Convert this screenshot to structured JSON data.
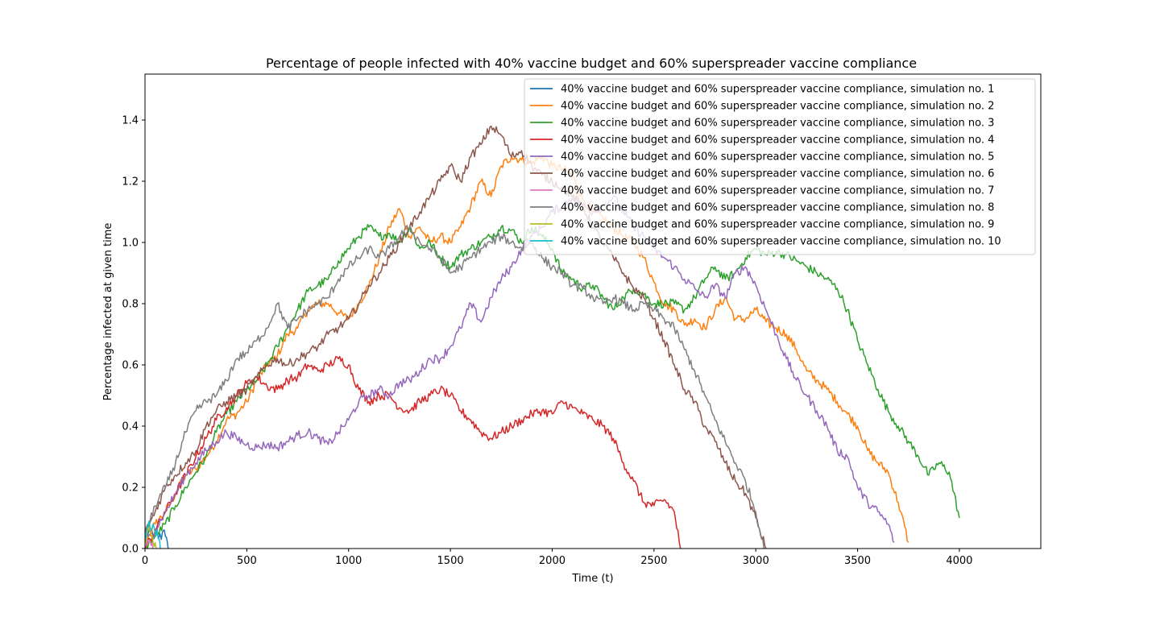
{
  "chart_data": {
    "type": "line",
    "title": "Percentage of people infected with 40% vaccine budget and 60% superspreader vaccine compliance",
    "xlabel": "Time (t)",
    "ylabel": "Percentage infected at given time",
    "xlim": [
      0,
      4400
    ],
    "ylim": [
      0,
      1.55
    ],
    "xticks": [
      0,
      500,
      1000,
      1500,
      2000,
      2500,
      3000,
      3500,
      4000
    ],
    "yticks": [
      0.0,
      0.2,
      0.4,
      0.6,
      0.8,
      1.0,
      1.2,
      1.4
    ],
    "xtick_labels": [
      "0",
      "500",
      "1000",
      "1500",
      "2000",
      "2500",
      "3000",
      "3500",
      "4000"
    ],
    "ytick_labels": [
      "0.0",
      "0.2",
      "0.4",
      "0.6",
      "0.8",
      "1.0",
      "1.2",
      "1.4"
    ],
    "grid": false,
    "legend_position": "upper right",
    "series": [
      {
        "name": "40% vaccine budget and 60% superspreader vaccine compliance, simulation no. 1",
        "color": "#1f77b4",
        "x": [
          0,
          20,
          40,
          60,
          80,
          90,
          100,
          110,
          115
        ],
        "y": [
          0.03,
          0.06,
          0.04,
          0.05,
          0.03,
          0.06,
          0.04,
          0.02,
          0.0
        ]
      },
      {
        "name": "40% vaccine budget and 60% superspreader vaccine compliance, simulation no. 2",
        "color": "#ff7f0e",
        "x": [
          0,
          50,
          100,
          150,
          200,
          250,
          300,
          350,
          400,
          450,
          500,
          550,
          600,
          650,
          700,
          750,
          800,
          850,
          900,
          950,
          1000,
          1050,
          1100,
          1150,
          1200,
          1250,
          1300,
          1350,
          1400,
          1450,
          1500,
          1550,
          1600,
          1650,
          1700,
          1750,
          1800,
          1850,
          1900,
          1950,
          2000,
          2050,
          2100,
          2150,
          2200,
          2250,
          2300,
          2350,
          2400,
          2450,
          2500,
          2550,
          2600,
          2650,
          2700,
          2750,
          2800,
          2850,
          2900,
          2950,
          3000,
          3050,
          3100,
          3150,
          3200,
          3250,
          3300,
          3350,
          3400,
          3450,
          3500,
          3550,
          3600,
          3650,
          3700,
          3750
        ],
        "y": [
          0.02,
          0.08,
          0.12,
          0.18,
          0.24,
          0.26,
          0.3,
          0.35,
          0.42,
          0.44,
          0.48,
          0.55,
          0.6,
          0.63,
          0.7,
          0.72,
          0.78,
          0.8,
          0.8,
          0.77,
          0.75,
          0.8,
          0.86,
          0.95,
          1.05,
          1.11,
          1.02,
          1.05,
          1.0,
          1.02,
          1.0,
          1.05,
          1.12,
          1.2,
          1.15,
          1.25,
          1.28,
          1.27,
          1.26,
          1.28,
          1.25,
          1.24,
          1.22,
          1.14,
          1.1,
          1.08,
          1.05,
          1.02,
          1.0,
          0.95,
          0.87,
          0.8,
          0.78,
          0.73,
          0.75,
          0.72,
          0.78,
          0.82,
          0.75,
          0.75,
          0.78,
          0.74,
          0.72,
          0.7,
          0.65,
          0.58,
          0.55,
          0.52,
          0.48,
          0.44,
          0.4,
          0.32,
          0.28,
          0.25,
          0.15,
          0.02
        ]
      },
      {
        "name": "40% vaccine budget and 60% superspreader vaccine compliance, simulation no. 3",
        "color": "#2ca02c",
        "x": [
          0,
          50,
          100,
          150,
          200,
          250,
          300,
          350,
          400,
          450,
          500,
          550,
          600,
          650,
          700,
          750,
          800,
          850,
          900,
          950,
          1000,
          1050,
          1100,
          1150,
          1200,
          1250,
          1300,
          1350,
          1400,
          1450,
          1500,
          1550,
          1600,
          1650,
          1700,
          1750,
          1800,
          1850,
          1900,
          1950,
          2000,
          2050,
          2100,
          2150,
          2200,
          2250,
          2300,
          2350,
          2400,
          2450,
          2500,
          2550,
          2600,
          2650,
          2700,
          2750,
          2800,
          2850,
          2900,
          2950,
          3000,
          3050,
          3100,
          3150,
          3200,
          3250,
          3300,
          3350,
          3400,
          3450,
          3500,
          3550,
          3600,
          3650,
          3700,
          3750,
          3800,
          3850,
          3900,
          3950,
          4000
        ],
        "y": [
          0.0,
          0.04,
          0.08,
          0.14,
          0.2,
          0.25,
          0.3,
          0.38,
          0.44,
          0.48,
          0.52,
          0.55,
          0.6,
          0.66,
          0.72,
          0.78,
          0.84,
          0.86,
          0.88,
          0.94,
          0.98,
          1.02,
          1.05,
          1.02,
          1.03,
          1.0,
          1.05,
          0.98,
          1.0,
          0.95,
          0.92,
          0.96,
          0.98,
          1.0,
          1.02,
          1.05,
          1.04,
          1.0,
          1.05,
          1.02,
          0.98,
          0.9,
          0.88,
          0.85,
          0.86,
          0.82,
          0.78,
          0.82,
          0.85,
          0.83,
          0.8,
          0.8,
          0.8,
          0.78,
          0.82,
          0.88,
          0.92,
          0.88,
          0.9,
          0.95,
          0.98,
          0.96,
          0.97,
          0.96,
          0.94,
          0.92,
          0.9,
          0.88,
          0.85,
          0.78,
          0.68,
          0.6,
          0.52,
          0.45,
          0.4,
          0.35,
          0.3,
          0.24,
          0.28,
          0.25,
          0.1
        ]
      },
      {
        "name": "40% vaccine budget and 60% superspreader vaccine compliance, simulation no. 4",
        "color": "#d62728",
        "x": [
          0,
          50,
          100,
          150,
          200,
          250,
          300,
          350,
          400,
          450,
          500,
          550,
          600,
          650,
          700,
          750,
          800,
          850,
          900,
          950,
          1000,
          1050,
          1100,
          1150,
          1200,
          1250,
          1300,
          1350,
          1400,
          1450,
          1500,
          1550,
          1600,
          1650,
          1700,
          1750,
          1800,
          1850,
          1900,
          1950,
          2000,
          2050,
          2100,
          2150,
          2200,
          2250,
          2300,
          2350,
          2400,
          2450,
          2500,
          2550,
          2600,
          2630
        ],
        "y": [
          0.0,
          0.06,
          0.12,
          0.18,
          0.24,
          0.3,
          0.36,
          0.42,
          0.46,
          0.5,
          0.54,
          0.56,
          0.53,
          0.52,
          0.55,
          0.56,
          0.6,
          0.58,
          0.6,
          0.62,
          0.6,
          0.52,
          0.48,
          0.5,
          0.5,
          0.46,
          0.45,
          0.48,
          0.5,
          0.52,
          0.5,
          0.45,
          0.42,
          0.38,
          0.36,
          0.38,
          0.4,
          0.42,
          0.44,
          0.45,
          0.44,
          0.48,
          0.46,
          0.44,
          0.42,
          0.4,
          0.36,
          0.28,
          0.22,
          0.15,
          0.14,
          0.16,
          0.12,
          0.0
        ]
      },
      {
        "name": "40% vaccine budget and 60% superspreader vaccine compliance, simulation no. 5",
        "color": "#9467bd",
        "x": [
          0,
          50,
          100,
          150,
          200,
          250,
          300,
          350,
          400,
          450,
          500,
          550,
          600,
          650,
          700,
          750,
          800,
          850,
          900,
          950,
          1000,
          1050,
          1100,
          1150,
          1200,
          1250,
          1300,
          1350,
          1400,
          1450,
          1500,
          1550,
          1600,
          1650,
          1700,
          1750,
          1800,
          1850,
          1900,
          1950,
          2000,
          2050,
          2100,
          2150,
          2200,
          2250,
          2300,
          2350,
          2400,
          2450,
          2500,
          2550,
          2600,
          2650,
          2700,
          2750,
          2800,
          2850,
          2900,
          2950,
          3000,
          3050,
          3100,
          3150,
          3200,
          3250,
          3300,
          3350,
          3400,
          3450,
          3500,
          3550,
          3600,
          3650,
          3680
        ],
        "y": [
          0.02,
          0.06,
          0.12,
          0.18,
          0.24,
          0.28,
          0.32,
          0.35,
          0.38,
          0.36,
          0.34,
          0.33,
          0.34,
          0.33,
          0.35,
          0.37,
          0.38,
          0.36,
          0.34,
          0.38,
          0.42,
          0.48,
          0.5,
          0.52,
          0.5,
          0.54,
          0.55,
          0.58,
          0.62,
          0.62,
          0.66,
          0.72,
          0.8,
          0.74,
          0.82,
          0.88,
          0.92,
          0.98,
          1.02,
          1.05,
          1.1,
          1.12,
          1.15,
          1.12,
          1.1,
          1.12,
          1.15,
          1.1,
          1.05,
          1.02,
          0.98,
          0.95,
          0.92,
          0.88,
          0.85,
          0.82,
          0.86,
          0.82,
          0.9,
          0.92,
          0.86,
          0.78,
          0.7,
          0.62,
          0.55,
          0.5,
          0.45,
          0.4,
          0.32,
          0.3,
          0.2,
          0.15,
          0.12,
          0.08,
          0.02
        ]
      },
      {
        "name": "40% vaccine budget and 60% superspreader vaccine compliance, simulation no. 6",
        "color": "#8c564b",
        "x": [
          0,
          50,
          100,
          150,
          200,
          250,
          300,
          350,
          400,
          450,
          500,
          550,
          600,
          650,
          700,
          750,
          800,
          850,
          900,
          950,
          1000,
          1050,
          1100,
          1150,
          1200,
          1250,
          1300,
          1350,
          1400,
          1450,
          1500,
          1550,
          1600,
          1650,
          1700,
          1750,
          1800,
          1850,
          1900,
          1950,
          2000,
          2050,
          2100,
          2150,
          2200,
          2250,
          2300,
          2350,
          2400,
          2450,
          2500,
          2550,
          2600,
          2650,
          2700,
          2750,
          2800,
          2850,
          2900,
          2950,
          3000,
          3050
        ],
        "y": [
          0.05,
          0.12,
          0.2,
          0.24,
          0.28,
          0.32,
          0.4,
          0.45,
          0.48,
          0.5,
          0.52,
          0.56,
          0.6,
          0.62,
          0.6,
          0.62,
          0.64,
          0.66,
          0.7,
          0.72,
          0.75,
          0.8,
          0.86,
          0.9,
          0.95,
          1.0,
          1.05,
          1.1,
          1.15,
          1.2,
          1.25,
          1.2,
          1.28,
          1.32,
          1.38,
          1.35,
          1.28,
          1.3,
          1.25,
          1.22,
          1.2,
          1.18,
          1.15,
          1.12,
          1.05,
          1.0,
          0.95,
          0.9,
          0.85,
          0.82,
          0.75,
          0.68,
          0.6,
          0.52,
          0.48,
          0.4,
          0.35,
          0.28,
          0.22,
          0.18,
          0.1,
          0.0
        ]
      },
      {
        "name": "40% vaccine budget and 60% superspreader vaccine compliance, simulation no. 7",
        "color": "#e377c2",
        "x": [
          0,
          10,
          20,
          30,
          40
        ],
        "y": [
          0.01,
          0.03,
          0.02,
          0.01,
          0.0
        ]
      },
      {
        "name": "40% vaccine budget and 60% superspreader vaccine compliance, simulation no. 8",
        "color": "#7f7f7f",
        "x": [
          0,
          50,
          100,
          150,
          200,
          250,
          300,
          350,
          400,
          450,
          500,
          550,
          600,
          650,
          700,
          750,
          800,
          850,
          900,
          950,
          1000,
          1050,
          1100,
          1150,
          1200,
          1250,
          1300,
          1350,
          1400,
          1450,
          1500,
          1550,
          1600,
          1650,
          1700,
          1750,
          1800,
          1850,
          1900,
          1950,
          2000,
          2050,
          2100,
          2150,
          2200,
          2250,
          2300,
          2350,
          2400,
          2450,
          2500,
          2550,
          2600,
          2650,
          2700,
          2750,
          2800,
          2850,
          2900,
          2950,
          3000,
          3040
        ],
        "y": [
          0.04,
          0.14,
          0.2,
          0.28,
          0.38,
          0.45,
          0.48,
          0.5,
          0.55,
          0.62,
          0.64,
          0.68,
          0.72,
          0.8,
          0.72,
          0.75,
          0.78,
          0.8,
          0.82,
          0.88,
          0.92,
          0.95,
          0.98,
          0.95,
          0.98,
          1.02,
          1.05,
          1.0,
          0.98,
          0.95,
          0.9,
          0.92,
          0.95,
          0.98,
          1.0,
          1.02,
          1.0,
          0.98,
          1.0,
          0.95,
          0.92,
          0.9,
          0.86,
          0.85,
          0.82,
          0.8,
          0.82,
          0.8,
          0.78,
          0.8,
          0.78,
          0.75,
          0.72,
          0.65,
          0.58,
          0.5,
          0.42,
          0.35,
          0.28,
          0.22,
          0.12,
          0.0
        ]
      },
      {
        "name": "40% vaccine budget and 60% superspreader vaccine compliance, simulation no. 9",
        "color": "#bcbd22",
        "x": [
          0,
          10,
          20,
          30,
          40,
          55
        ],
        "y": [
          0.02,
          0.05,
          0.07,
          0.04,
          0.02,
          0.0
        ]
      },
      {
        "name": "40% vaccine budget and 60% superspreader vaccine compliance, simulation no. 10",
        "color": "#17becf",
        "x": [
          0,
          10,
          20,
          30,
          40,
          50,
          60,
          70,
          75
        ],
        "y": [
          0.03,
          0.07,
          0.09,
          0.06,
          0.08,
          0.05,
          0.06,
          0.03,
          0.0
        ]
      }
    ]
  }
}
